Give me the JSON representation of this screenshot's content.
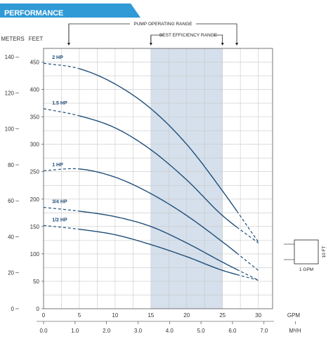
{
  "header": {
    "title": "PERFORMANCE"
  },
  "colors": {
    "banner": "#2f9ad6",
    "curve": "#1f4e79",
    "band": "#d5e0ec",
    "grid": "#c8c8c8",
    "axis": "#333333"
  },
  "chart_data": {
    "type": "line",
    "ranges": {
      "pump_operating": {
        "label": "PUMP OPERATING RANGE",
        "from": 5.0,
        "to": 27.0
      },
      "best_efficiency": {
        "label": "BEST EFFICIENCY RANGE",
        "from": 15.0,
        "to": 25.0
      }
    },
    "axes": {
      "feet": {
        "label": "FEET",
        "min": 0,
        "max": 475,
        "ticks": [
          0,
          50,
          100,
          150,
          200,
          250,
          300,
          350,
          400,
          450
        ]
      },
      "meters": {
        "label": "METERS",
        "ticks": [
          0,
          20,
          40,
          60,
          80,
          100,
          120,
          140
        ]
      },
      "gpm": {
        "label": "GPM",
        "min": 0,
        "max": 32,
        "ticks": [
          0,
          5,
          10,
          15,
          20,
          25,
          30
        ]
      },
      "m3h": {
        "label": "M³/H",
        "ticks": [
          "0",
          "0.0",
          "1.0",
          "2.0",
          "3.0",
          "4.0",
          "5.0",
          "6.0",
          "7.0"
        ]
      }
    },
    "grid": true,
    "series": [
      {
        "name": "2 HP",
        "x": [
          0,
          5,
          10,
          15,
          20,
          25,
          30
        ],
        "y": [
          448,
          438,
          410,
          365,
          300,
          215,
          122
        ]
      },
      {
        "name": "1.5 HP",
        "x": [
          0,
          5,
          10,
          15,
          20,
          25,
          30
        ],
        "y": [
          365,
          352,
          330,
          290,
          235,
          170,
          120
        ]
      },
      {
        "name": "1 HP",
        "x": [
          0,
          5,
          10,
          15,
          20,
          25,
          30
        ],
        "y": [
          252,
          255,
          240,
          210,
          170,
          122,
          70
        ]
      },
      {
        "name": "3/4 HP",
        "x": [
          0,
          5,
          10,
          15,
          20,
          25,
          30
        ],
        "y": [
          185,
          178,
          168,
          150,
          120,
          85,
          52
        ]
      },
      {
        "name": "1/2 HP",
        "x": [
          0,
          5,
          10,
          15,
          20,
          25,
          30
        ],
        "y": [
          152,
          145,
          135,
          117,
          95,
          70,
          52
        ]
      }
    ],
    "scale_box": {
      "height_label": "10 FT",
      "width_label": "1 GPM"
    }
  }
}
